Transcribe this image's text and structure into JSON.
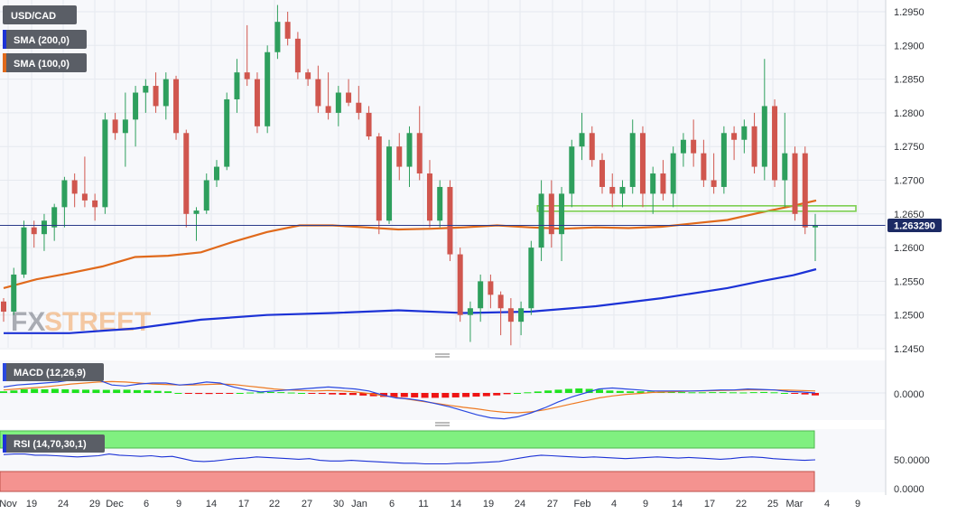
{
  "chart_data": {
    "type": "candlestick",
    "symbol": "USD/CAD",
    "watermark": {
      "part1": "FX",
      "part2": "STREET"
    },
    "last_price_label": "1.263290",
    "last_price": 1.26329,
    "colors": {
      "up": "#2e9f5d",
      "down": "#d0564e",
      "sma200": "#1c32d6",
      "sma100": "#e06a1c",
      "hist_pos": "#1ee21e",
      "hist_neg": "#ee1414",
      "macd_line": "#2a48e0",
      "signal_line": "#ee7a22",
      "rsi_line": "#1c32d6",
      "rsi_upper_zone": "#80f080",
      "rsi_lower_zone": "#f49390",
      "resistance_zone": "#7ccf50"
    },
    "price_axis": {
      "ticks": [
        "1.2950",
        "1.2900",
        "1.2850",
        "1.2800",
        "1.2750",
        "1.2700",
        "1.2650",
        "1.2600",
        "1.2550",
        "1.2500",
        "1.2450"
      ],
      "range": [
        1.2445,
        1.2965
      ]
    },
    "x_axis": {
      "labels": [
        "Nov",
        "19",
        "24",
        "29",
        "Dec",
        "6",
        "9",
        "14",
        "17",
        "22",
        "27",
        "30",
        "Jan",
        "6",
        "11",
        "14",
        "19",
        "24",
        "27",
        "Feb",
        "4",
        "9",
        "14",
        "17",
        "22",
        "25",
        "Mar",
        "4",
        "9"
      ]
    },
    "indicators": [
      {
        "name": "SMA (200,0)",
        "color": "#1c32d6"
      },
      {
        "name": "SMA (100,0)",
        "color": "#e06a1c"
      }
    ],
    "candles": [
      [
        1.252,
        1.2525,
        1.249,
        1.2505
      ],
      [
        1.2505,
        1.257,
        1.25,
        1.256
      ],
      [
        1.256,
        1.264,
        1.2555,
        1.263
      ],
      [
        1.263,
        1.264,
        1.26,
        1.262
      ],
      [
        1.262,
        1.265,
        1.2595,
        1.264
      ],
      [
        1.263,
        1.2665,
        1.261,
        1.266
      ],
      [
        1.266,
        1.2705,
        1.263,
        1.27
      ],
      [
        1.27,
        1.271,
        1.266,
        1.268
      ],
      [
        1.268,
        1.2735,
        1.266,
        1.267
      ],
      [
        1.267,
        1.268,
        1.264,
        1.266
      ],
      [
        1.266,
        1.28,
        1.265,
        1.279
      ],
      [
        1.279,
        1.28,
        1.276,
        1.277
      ],
      [
        1.277,
        1.283,
        1.272,
        1.279
      ],
      [
        1.279,
        1.284,
        1.275,
        1.283
      ],
      [
        1.283,
        1.285,
        1.28,
        1.284
      ],
      [
        1.284,
        1.286,
        1.28,
        1.281
      ],
      [
        1.281,
        1.286,
        1.279,
        1.285
      ],
      [
        1.285,
        1.2855,
        1.276,
        1.277
      ],
      [
        1.277,
        1.2775,
        1.263,
        1.265
      ],
      [
        1.265,
        1.266,
        1.261,
        1.2655
      ],
      [
        1.2655,
        1.271,
        1.265,
        1.27
      ],
      [
        1.27,
        1.273,
        1.269,
        1.272
      ],
      [
        1.272,
        1.283,
        1.2715,
        1.282
      ],
      [
        1.282,
        1.288,
        1.28,
        1.286
      ],
      [
        1.286,
        1.293,
        1.284,
        1.285
      ],
      [
        1.285,
        1.286,
        1.277,
        1.278
      ],
      [
        1.278,
        1.29,
        1.277,
        1.289
      ],
      [
        1.289,
        1.296,
        1.288,
        1.2935
      ],
      [
        1.2935,
        1.295,
        1.29,
        1.291
      ],
      [
        1.291,
        1.292,
        1.285,
        1.286
      ],
      [
        1.286,
        1.2865,
        1.284,
        1.285
      ],
      [
        1.285,
        1.287,
        1.28,
        1.281
      ],
      [
        1.281,
        1.286,
        1.279,
        1.28
      ],
      [
        1.28,
        1.284,
        1.278,
        1.283
      ],
      [
        1.283,
        1.285,
        1.281,
        1.2815
      ],
      [
        1.2815,
        1.284,
        1.279,
        1.28
      ],
      [
        1.28,
        1.281,
        1.276,
        1.2765
      ],
      [
        1.2765,
        1.277,
        1.262,
        1.264
      ],
      [
        1.264,
        1.276,
        1.2635,
        1.275
      ],
      [
        1.275,
        1.277,
        1.27,
        1.272
      ],
      [
        1.272,
        1.278,
        1.269,
        1.277
      ],
      [
        1.277,
        1.281,
        1.27,
        1.271
      ],
      [
        1.271,
        1.273,
        1.263,
        1.264
      ],
      [
        1.264,
        1.27,
        1.263,
        1.269
      ],
      [
        1.269,
        1.27,
        1.258,
        1.259
      ],
      [
        1.259,
        1.26,
        1.249,
        1.25
      ],
      [
        1.25,
        1.252,
        1.246,
        1.251
      ],
      [
        1.251,
        1.256,
        1.249,
        1.255
      ],
      [
        1.255,
        1.256,
        1.251,
        1.253
      ],
      [
        1.253,
        1.2535,
        1.247,
        1.251
      ],
      [
        1.251,
        1.2525,
        1.2455,
        1.249
      ],
      [
        1.249,
        1.252,
        1.247,
        1.251
      ],
      [
        1.251,
        1.261,
        1.25,
        1.26
      ],
      [
        1.26,
        1.27,
        1.258,
        1.268
      ],
      [
        1.268,
        1.27,
        1.26,
        1.262
      ],
      [
        1.262,
        1.269,
        1.258,
        1.268
      ],
      [
        1.268,
        1.276,
        1.266,
        1.275
      ],
      [
        1.275,
        1.28,
        1.273,
        1.277
      ],
      [
        1.277,
        1.278,
        1.272,
        1.273
      ],
      [
        1.273,
        1.274,
        1.268,
        1.269
      ],
      [
        1.269,
        1.271,
        1.266,
        1.268
      ],
      [
        1.268,
        1.27,
        1.266,
        1.269
      ],
      [
        1.269,
        1.279,
        1.268,
        1.277
      ],
      [
        1.277,
        1.278,
        1.266,
        1.268
      ],
      [
        1.268,
        1.272,
        1.265,
        1.271
      ],
      [
        1.271,
        1.273,
        1.267,
        1.268
      ],
      [
        1.268,
        1.275,
        1.266,
        1.274
      ],
      [
        1.274,
        1.277,
        1.272,
        1.276
      ],
      [
        1.276,
        1.279,
        1.272,
        1.274
      ],
      [
        1.274,
        1.276,
        1.269,
        1.27
      ],
      [
        1.27,
        1.274,
        1.268,
        1.269
      ],
      [
        1.269,
        1.278,
        1.268,
        1.277
      ],
      [
        1.277,
        1.278,
        1.273,
        1.276
      ],
      [
        1.276,
        1.279,
        1.274,
        1.278
      ],
      [
        1.278,
        1.28,
        1.271,
        1.272
      ],
      [
        1.272,
        1.288,
        1.27,
        1.281
      ],
      [
        1.281,
        1.282,
        1.269,
        1.27
      ],
      [
        1.27,
        1.28,
        1.266,
        1.274
      ],
      [
        1.274,
        1.275,
        1.264,
        1.265
      ],
      [
        1.274,
        1.275,
        1.262,
        1.263
      ],
      [
        1.263,
        1.265,
        1.258,
        1.2633
      ]
    ],
    "sma200": [
      [
        0,
        1.2473
      ],
      [
        20,
        1.2473
      ],
      [
        40,
        1.248
      ],
      [
        60,
        1.2493
      ],
      [
        80,
        1.25
      ],
      [
        100,
        1.2503
      ],
      [
        120,
        1.2507
      ],
      [
        140,
        1.2503
      ],
      [
        160,
        1.2505
      ],
      [
        180,
        1.2513
      ],
      [
        200,
        1.2525
      ],
      [
        220,
        1.254
      ],
      [
        230,
        1.255
      ],
      [
        240,
        1.2559
      ],
      [
        247,
        1.2568
      ]
    ],
    "sma100": [
      [
        0,
        1.254
      ],
      [
        10,
        1.2553
      ],
      [
        20,
        1.2562
      ],
      [
        30,
        1.2572
      ],
      [
        40,
        1.2586
      ],
      [
        50,
        1.2588
      ],
      [
        60,
        1.2593
      ],
      [
        70,
        1.2609
      ],
      [
        80,
        1.2623
      ],
      [
        90,
        1.2633
      ],
      [
        100,
        1.2633
      ],
      [
        110,
        1.263
      ],
      [
        120,
        1.2627
      ],
      [
        130,
        1.2628
      ],
      [
        140,
        1.263
      ],
      [
        150,
        1.2633
      ],
      [
        160,
        1.263
      ],
      [
        170,
        1.2628
      ],
      [
        180,
        1.263
      ],
      [
        190,
        1.2629
      ],
      [
        200,
        1.2631
      ],
      [
        210,
        1.2636
      ],
      [
        220,
        1.2641
      ],
      [
        230,
        1.2652
      ],
      [
        240,
        1.2662
      ],
      [
        247,
        1.267
      ]
    ],
    "resistance_zone": {
      "low": 1.2652,
      "high": 1.2658,
      "from_index": 77,
      "to_index": 125
    },
    "macd": {
      "label": "MACD (12,26,9)",
      "tick": "0.0000",
      "histogram": [
        0.002,
        0.003,
        0.0045,
        0.005,
        0.0045,
        0.005,
        0.0045,
        0.0042,
        0.004,
        0.004,
        0.0038,
        0.004,
        0.004,
        0.0035,
        0.0032,
        0.0025,
        0.002,
        0.0,
        -0.001,
        -0.0012,
        -0.0013,
        -0.0008,
        -0.0002,
        0.0,
        0.0005,
        0.0008,
        0.0012,
        0.001,
        0.0005,
        0.0,
        -0.0005,
        -0.0012,
        -0.0018,
        -0.0022,
        -0.0025,
        -0.0032,
        -0.004,
        -0.0048,
        -0.005,
        -0.005,
        -0.0055,
        -0.006,
        -0.006,
        -0.0058,
        -0.0055,
        -0.005,
        -0.0045,
        -0.004,
        -0.003,
        -0.0015,
        0.0,
        0.0008,
        0.0018,
        0.003,
        0.004,
        0.005,
        0.0055,
        0.005,
        0.004,
        0.003,
        0.0025,
        0.002,
        0.002,
        0.0018,
        0.0015,
        0.0012,
        0.001,
        0.0008,
        0.0008,
        0.001,
        0.001,
        0.0008,
        0.0006,
        0.001,
        0.0012,
        0.0008,
        0.0,
        -0.0005,
        -0.0018,
        -0.003
      ],
      "macd_line": [
        0.006,
        0.008,
        0.009,
        0.01,
        0.011,
        0.013,
        0.014,
        0.013,
        0.008,
        0.007,
        0.009,
        0.01,
        0.01,
        0.008,
        0.009,
        0.011,
        0.01,
        0.006,
        0.003,
        0.001,
        0.002,
        0.003,
        0.004,
        0.005,
        0.006,
        0.005,
        0.004,
        0.002,
        -0.002,
        -0.005,
        -0.006,
        -0.008,
        -0.011,
        -0.014,
        -0.018,
        -0.022,
        -0.025,
        -0.026,
        -0.024,
        -0.02,
        -0.015,
        -0.009,
        -0.004,
        0.0,
        0.004,
        0.005,
        0.004,
        0.003,
        0.002,
        0.002,
        0.002,
        0.002,
        0.0025,
        0.003,
        0.003,
        0.004,
        0.0035,
        0.003,
        0.0015,
        0.001,
        0.0
      ],
      "signal_line": [
        0.003,
        0.004,
        0.005,
        0.006,
        0.0075,
        0.009,
        0.01,
        0.011,
        0.0115,
        0.011,
        0.01,
        0.009,
        0.0085,
        0.008,
        0.008,
        0.0085,
        0.009,
        0.0085,
        0.007,
        0.0055,
        0.004,
        0.003,
        0.0025,
        0.002,
        0.0025,
        0.002,
        0.001,
        -0.0005,
        -0.0025,
        -0.0045,
        -0.0065,
        -0.0085,
        -0.0105,
        -0.0125,
        -0.0145,
        -0.016,
        -0.018,
        -0.0195,
        -0.02,
        -0.019,
        -0.017,
        -0.014,
        -0.011,
        -0.008,
        -0.005,
        -0.003,
        -0.0015,
        -0.0005,
        0.0005,
        0.001,
        0.0015,
        0.002,
        0.0022,
        0.0025,
        0.0027,
        0.003,
        0.003,
        0.003,
        0.0028,
        0.0025,
        0.002
      ]
    },
    "rsi": {
      "label": "RSI (14,70,30,1)",
      "ticks": [
        "50.0000",
        "0.0000"
      ],
      "overbought": 70,
      "oversold": 30,
      "values": [
        59,
        60,
        60,
        58,
        58,
        57,
        56,
        55,
        56,
        57,
        60,
        58,
        57,
        56,
        57,
        55,
        56,
        52,
        48,
        47,
        48,
        50,
        52,
        53,
        55,
        54,
        53,
        52,
        51,
        52,
        49,
        48,
        48,
        49,
        48,
        47,
        46,
        45,
        44,
        44,
        43,
        43,
        43,
        44,
        44,
        45,
        46,
        47,
        50,
        53,
        56,
        58,
        57,
        56,
        55,
        54,
        55,
        54,
        53,
        52,
        53,
        54,
        55,
        54,
        53,
        54,
        53,
        52,
        51,
        52,
        54,
        55,
        54,
        52,
        51,
        50,
        49,
        50
      ]
    }
  }
}
